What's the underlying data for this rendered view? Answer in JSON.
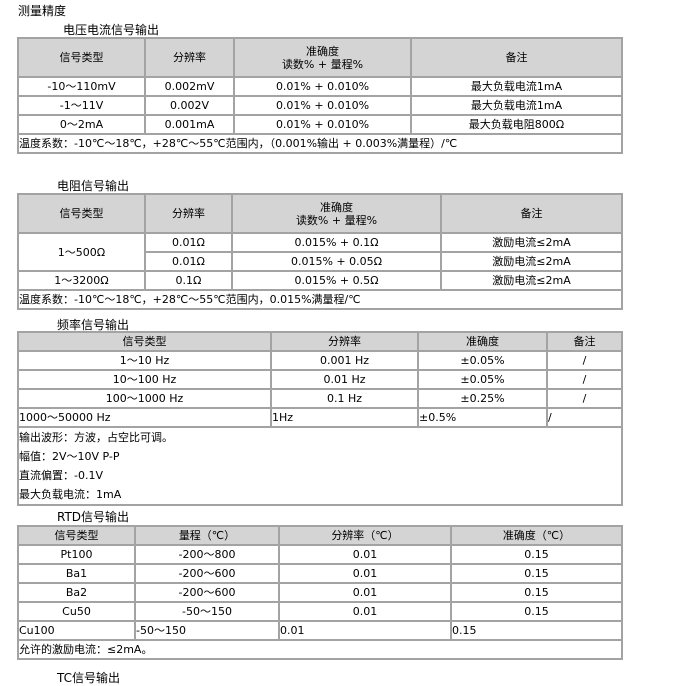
{
  "title": "测量精度",
  "sections": [
    {
      "title": "电压电流信号输出",
      "headers": [
        "信号类型",
        "分辨率",
        "准确度",
        "读数% + 量程%",
        "备注"
      ],
      "rows": [
        [
          "-10～110mV",
          "0.002mV",
          "0.01% + 0.010%",
          "最大负载电流1mA"
        ],
        [
          "-1～11V",
          "0.002V",
          "0.01% + 0.010%",
          "最大负载电流1mA"
        ],
        [
          "0～2mA",
          "0.001mA",
          "0.01% + 0.010%",
          "最大负载电阻800Ω"
        ]
      ],
      "note": "温度系数：-10℃～18℃，+28℃～55℃范围内，（0.001%输出 + 0.003%满量程）/℃"
    },
    {
      "title": "电阻信号输出",
      "headers": [
        "信号类型",
        "分辨率",
        "准确度",
        "读数% + 量程%",
        "备注"
      ],
      "rows": [
        [
          "1～500Ω",
          "0.01Ω",
          "0.015% + 0.1Ω",
          "激励电流≤2mA"
        ],
        [
          "",
          "0.01Ω",
          "0.015% + 0.05Ω",
          "激励电流≤2mA"
        ],
        [
          "1～3200Ω",
          "0.1Ω",
          "0.015% + 0.5Ω",
          "激励电流≤2mA"
        ]
      ],
      "note": "温度系数：-10℃～18℃，+28℃～55℃范围内，0.015%满量程/℃"
    },
    {
      "title": "频率信号输出",
      "headers": [
        "信号类型",
        "分辨率",
        "准确度",
        "备注"
      ],
      "rows": [
        [
          "1～10 Hz",
          "0.001 Hz",
          "±0.05%",
          "/"
        ],
        [
          "10～100 Hz",
          "0.01 Hz",
          "±0.05%",
          "/"
        ],
        [
          "100～1000 Hz",
          "0.1 Hz",
          "±0.25%",
          "/"
        ],
        [
          "1000～50000 Hz",
          "1Hz",
          "±0.5%",
          "/"
        ]
      ],
      "notes": [
        "输出波形：方波，占空比可调。",
        "幅值：2V～10V P-P",
        "直流偏置：-0.1V",
        "最大负载电流：1mA"
      ]
    },
    {
      "title": "RTD信号输出",
      "headers": [
        "信号类型",
        "量程（℃）",
        "分辨率（℃）",
        "准确度（℃）"
      ],
      "rows": [
        [
          "Pt100",
          "-200～800",
          "0.01",
          "0.15"
        ],
        [
          "Ba1",
          "-200～600",
          "0.01",
          "0.15"
        ],
        [
          "Ba2",
          "-200～600",
          "0.01",
          "0.15"
        ],
        [
          "Cu50",
          "-50～150",
          "0.01",
          "0.15"
        ],
        [
          "Cu100",
          "-50～150",
          "0.01",
          "0.15"
        ]
      ],
      "note": "允许的激励电流：≤2mA。"
    },
    {
      "title": "TC信号输出"
    }
  ]
}
